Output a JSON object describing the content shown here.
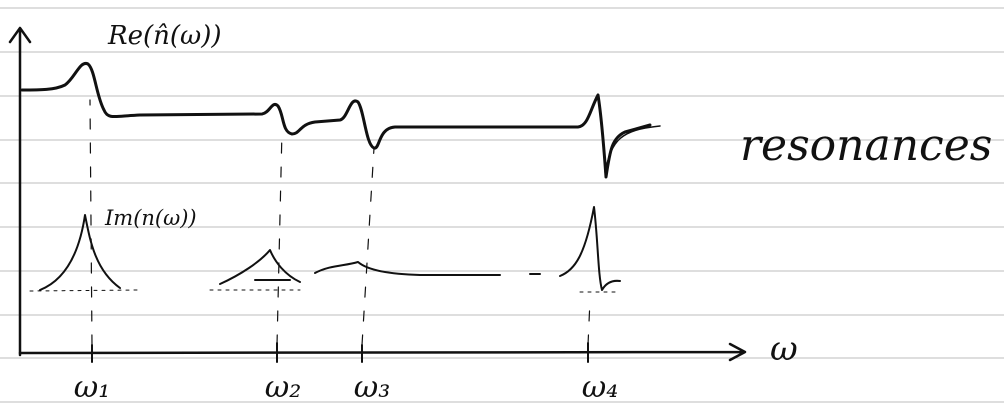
{
  "labels": {
    "real_part": "Re(n̂(ω))",
    "imaginary_part": "Im(n(ω))",
    "note": "resonances",
    "x_axis": "ω"
  },
  "resonances": [
    "ω₁",
    "ω₂",
    "ω₃",
    "ω₄"
  ]
}
